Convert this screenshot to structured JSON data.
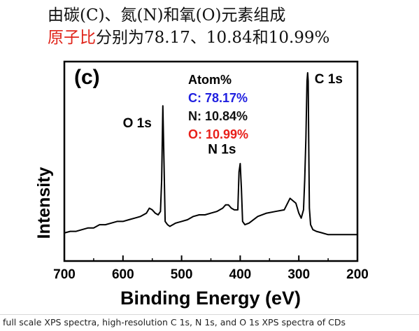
{
  "header": {
    "line1": "由碳(C)、氮(N)和氧(O)元素组成",
    "line2_highlight": "原子比",
    "line2_rest": "分别为78.17、10.84和10.99%"
  },
  "chart_data": {
    "type": "line",
    "panel_label": "(c)",
    "xlabel": "Binding Energy (eV)",
    "ylabel": "Intensity",
    "xlim": [
      700,
      200
    ],
    "x_reversed": true,
    "x_ticks": [
      700,
      600,
      500,
      400,
      300,
      200
    ],
    "y_ticks_shown": false,
    "ylim": [
      0,
      100
    ],
    "series": [
      {
        "values_note": "relative intensity (arbitrary units)",
        "x": [
          700,
          690,
          680,
          670,
          660,
          650,
          640,
          630,
          620,
          610,
          600,
          590,
          580,
          570,
          560,
          555,
          550,
          545,
          540,
          536,
          534,
          532,
          530,
          528,
          524,
          520,
          510,
          500,
          490,
          480,
          470,
          460,
          450,
          440,
          430,
          425,
          420,
          415,
          410,
          404,
          402,
          400,
          398,
          396,
          392,
          385,
          370,
          355,
          340,
          325,
          315,
          305,
          300,
          296,
          292,
          290,
          288,
          286,
          285,
          284,
          283,
          282,
          280,
          276,
          270,
          260,
          250,
          240,
          230,
          220,
          210,
          200
        ],
        "y": [
          3,
          4,
          4,
          5,
          6,
          6,
          8,
          8,
          9,
          10,
          10,
          11,
          12,
          13,
          15,
          18,
          17,
          15,
          14,
          16,
          35,
          80,
          45,
          10,
          8,
          7,
          9,
          10,
          11,
          13,
          14,
          14,
          15,
          16,
          18,
          20,
          20,
          18,
          17,
          17,
          40,
          45,
          30,
          10,
          8,
          9,
          13,
          15,
          16,
          17,
          24,
          21,
          15,
          12,
          17,
          35,
          60,
          95,
          100,
          95,
          55,
          18,
          8,
          5,
          4,
          3,
          2,
          2,
          2,
          2,
          2,
          2
        ]
      }
    ],
    "peak_labels": [
      {
        "text": "O 1s",
        "x": 532
      },
      {
        "text": "N 1s",
        "x": 400
      },
      {
        "text": "C 1s",
        "x": 285
      }
    ],
    "annotation_box": {
      "title": "Atom%",
      "lines": [
        {
          "text": "C: 78.17%",
          "color": "#2020e0"
        },
        {
          "text": "N: 10.84%",
          "color": "#111111"
        },
        {
          "text": "O: 10.99%",
          "color": "#e8201a"
        }
      ]
    },
    "colors": {
      "line": "#000000",
      "highlight_red": "#e0251b"
    }
  },
  "caption": {
    "text": "full scale XPS spectra, high-resolution C 1s, N 1s, and O 1s XPS spectra of CDs"
  }
}
